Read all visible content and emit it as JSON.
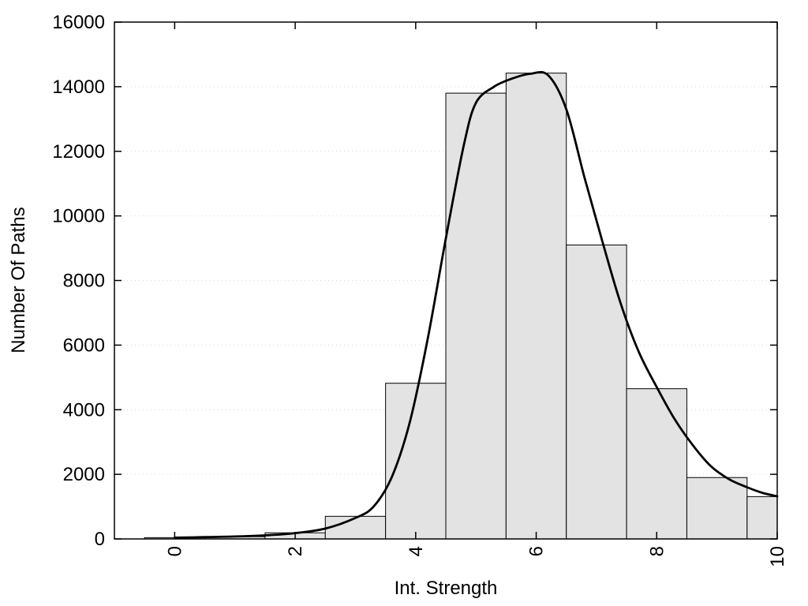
{
  "chart_data": {
    "type": "bar",
    "subtype": "histogram-with-density-curve",
    "title": "",
    "xlabel": "Int. Strength",
    "ylabel": "Number Of Paths",
    "xlim": [
      -1,
      10
    ],
    "ylim": [
      0,
      16000
    ],
    "xticks": [
      0,
      2,
      4,
      6,
      8,
      10
    ],
    "yticks": [
      0,
      2000,
      4000,
      6000,
      8000,
      10000,
      12000,
      14000,
      16000
    ],
    "grid": "horizontal-dotted",
    "legend": "none",
    "bar_fill": "#e3e3e3",
    "bar_stroke": "#000000",
    "curve_color": "#000000",
    "bars": [
      {
        "x0": -0.5,
        "x1": 0.5,
        "value": 40
      },
      {
        "x0": 0.5,
        "x1": 1.5,
        "value": 70
      },
      {
        "x0": 1.5,
        "x1": 2.5,
        "value": 190
      },
      {
        "x0": 2.5,
        "x1": 3.5,
        "value": 700
      },
      {
        "x0": 3.5,
        "x1": 4.5,
        "value": 4820
      },
      {
        "x0": 4.5,
        "x1": 5.5,
        "value": 13800
      },
      {
        "x0": 5.5,
        "x1": 6.5,
        "value": 14420
      },
      {
        "x0": 6.5,
        "x1": 7.5,
        "value": 9100
      },
      {
        "x0": 7.5,
        "x1": 8.5,
        "value": 4650
      },
      {
        "x0": 8.5,
        "x1": 9.5,
        "value": 1900
      },
      {
        "x0": 9.5,
        "x1": 10,
        "value": 1310
      }
    ],
    "curve": [
      [
        0,
        40
      ],
      [
        0.5,
        55
      ],
      [
        1,
        75
      ],
      [
        1.5,
        110
      ],
      [
        2,
        180
      ],
      [
        2.5,
        320
      ],
      [
        3,
        650
      ],
      [
        3.3,
        1000
      ],
      [
        3.6,
        1900
      ],
      [
        3.9,
        3600
      ],
      [
        4.2,
        6200
      ],
      [
        4.5,
        9300
      ],
      [
        4.8,
        12200
      ],
      [
        5.0,
        13500
      ],
      [
        5.3,
        14000
      ],
      [
        5.6,
        14250
      ],
      [
        5.9,
        14400
      ],
      [
        6.2,
        14350
      ],
      [
        6.5,
        13300
      ],
      [
        6.8,
        11200
      ],
      [
        7.1,
        9200
      ],
      [
        7.4,
        7300
      ],
      [
        7.7,
        5800
      ],
      [
        8.0,
        4700
      ],
      [
        8.3,
        3700
      ],
      [
        8.6,
        2900
      ],
      [
        8.9,
        2250
      ],
      [
        9.2,
        1850
      ],
      [
        9.5,
        1600
      ],
      [
        9.75,
        1430
      ],
      [
        10,
        1320
      ]
    ]
  }
}
